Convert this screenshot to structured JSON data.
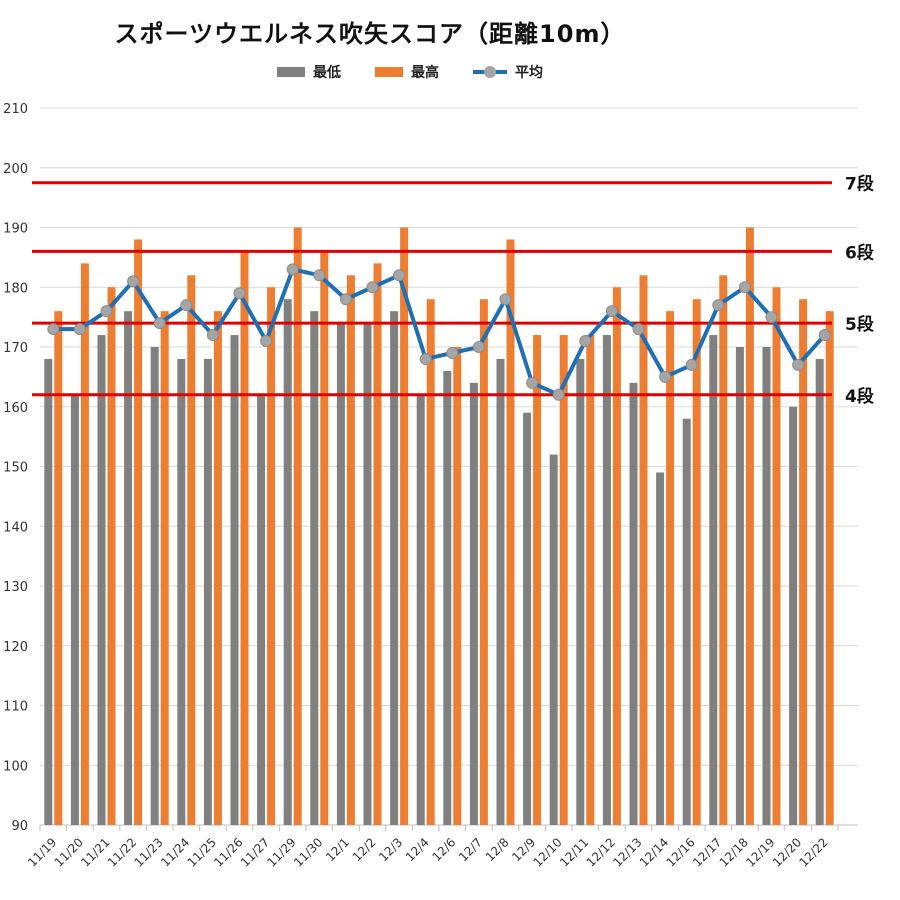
{
  "title": "スポーツウエルネス吹矢スコア（距離10m）",
  "legend": {
    "min_label": "最低",
    "max_label": "最高",
    "avg_label": "平均"
  },
  "colors": {
    "min": "#808080",
    "max": "#ed7d31",
    "avg": "#1f6fb5",
    "marker": "#a5a5a5",
    "threshold": "#e00000",
    "grid": "#d9d9d9"
  },
  "chart_data": {
    "type": "bar",
    "title": "スポーツウエルネス吹矢スコア（距離10m）",
    "xlabel": "",
    "ylabel": "",
    "ylim": [
      90,
      210
    ],
    "yticks": [
      90,
      100,
      110,
      120,
      130,
      140,
      150,
      160,
      170,
      180,
      190,
      200,
      210
    ],
    "grid": true,
    "legend_position": "top",
    "categories": [
      "11/19",
      "11/20",
      "11/21",
      "11/22",
      "11/23",
      "11/24",
      "11/25",
      "11/26",
      "11/27",
      "11/29",
      "11/30",
      "12/1",
      "12/2",
      "12/3",
      "12/4",
      "12/6",
      "12/7",
      "12/8",
      "12/9",
      "12/10",
      "12/11",
      "12/12",
      "12/13",
      "12/14",
      "12/16",
      "12/17",
      "12/18",
      "12/19",
      "12/20",
      "12/22"
    ],
    "series": [
      {
        "name": "最低",
        "type": "bar",
        "values": [
          168,
          162,
          172,
          176,
          170,
          168,
          168,
          172,
          162,
          178,
          176,
          174,
          174,
          176,
          162,
          166,
          164,
          168,
          159,
          152,
          168,
          172,
          164,
          149,
          158,
          172,
          170,
          170,
          160,
          168
        ]
      },
      {
        "name": "最高",
        "type": "bar",
        "values": [
          176,
          184,
          180,
          188,
          176,
          182,
          176,
          186,
          180,
          190,
          186,
          182,
          184,
          190,
          178,
          170,
          178,
          188,
          172,
          172,
          172,
          180,
          182,
          176,
          178,
          182,
          190,
          180,
          178,
          176
        ]
      },
      {
        "name": "平均",
        "type": "line",
        "values": [
          173,
          173,
          176,
          181,
          174,
          177,
          172,
          179,
          171,
          183,
          182,
          178,
          180,
          182,
          168,
          169,
          170,
          178,
          164,
          162,
          171,
          176,
          173,
          165,
          167,
          177,
          180,
          175,
          167,
          172
        ]
      }
    ],
    "reference_lines": [
      {
        "label": "7段",
        "value": 197.5
      },
      {
        "label": "6段",
        "value": 186
      },
      {
        "label": "5段",
        "value": 174
      },
      {
        "label": "4段",
        "value": 162
      }
    ]
  }
}
